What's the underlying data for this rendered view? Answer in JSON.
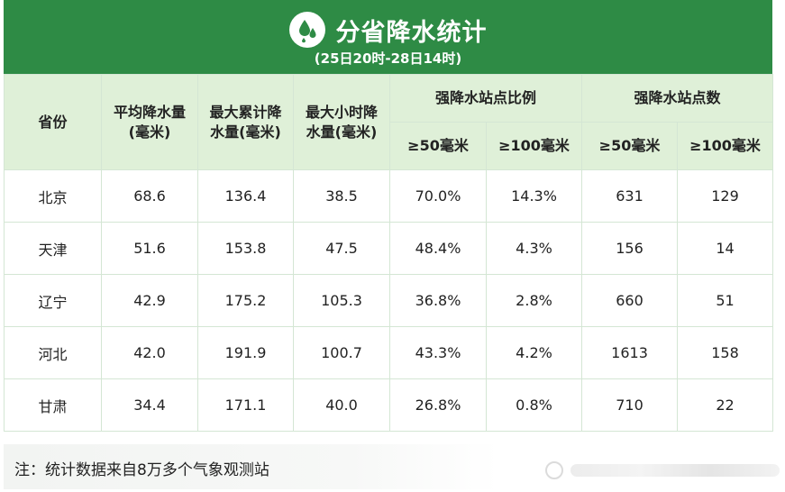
{
  "header": {
    "icon": "water-drops-icon",
    "title": "分省降水统计",
    "subtitle": "(25日20时-28日14时)"
  },
  "colors": {
    "header_bg": "#2e8b45",
    "header_row_bg": "#dff0d8",
    "border": "#d4e6d4"
  },
  "chart_data": {
    "type": "table",
    "title": "分省降水统计",
    "subtitle": "(25日20时-28日14时)",
    "columns": {
      "province": "省份",
      "avg": "平均降水量(毫米)",
      "max_total": "最大累计降水量(毫米)",
      "max_hourly": "最大小时降水量(毫米)",
      "ratio_group": "强降水站点比例",
      "count_group": "强降水站点数",
      "ge50": "≥50毫米",
      "ge100": "≥100毫米"
    },
    "rows": [
      {
        "province": "北京",
        "avg": "68.6",
        "max_total": "136.4",
        "max_hourly": "38.5",
        "ratio50": "70.0%",
        "ratio100": "14.3%",
        "count50": "631",
        "count100": "129"
      },
      {
        "province": "天津",
        "avg": "51.6",
        "max_total": "153.8",
        "max_hourly": "47.5",
        "ratio50": "48.4%",
        "ratio100": "4.3%",
        "count50": "156",
        "count100": "14"
      },
      {
        "province": "辽宁",
        "avg": "42.9",
        "max_total": "175.2",
        "max_hourly": "105.3",
        "ratio50": "36.8%",
        "ratio100": "2.8%",
        "count50": "660",
        "count100": "51"
      },
      {
        "province": "河北",
        "avg": "42.0",
        "max_total": "191.9",
        "max_hourly": "100.7",
        "ratio50": "43.3%",
        "ratio100": "4.2%",
        "count50": "1613",
        "count100": "158"
      },
      {
        "province": "甘肃",
        "avg": "34.4",
        "max_total": "171.1",
        "max_hourly": "40.0",
        "ratio50": "26.8%",
        "ratio100": "0.8%",
        "count50": "710",
        "count100": "22"
      }
    ]
  },
  "footer": {
    "note": "注：统计数据来自8万多个气象观测站"
  }
}
